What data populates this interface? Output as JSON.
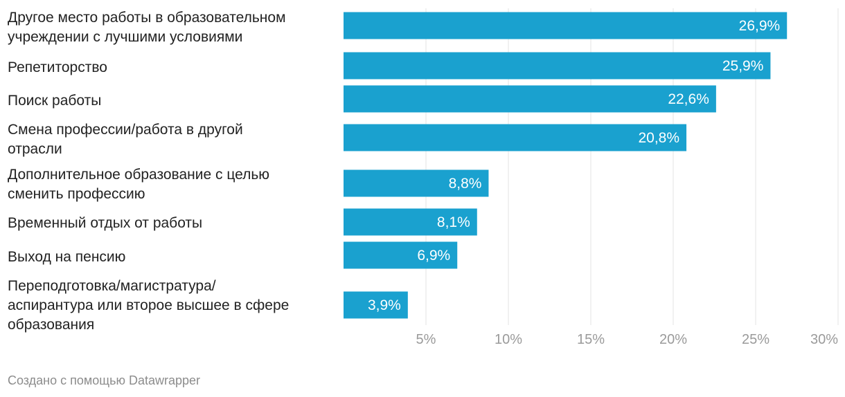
{
  "chart_data": {
    "type": "bar",
    "orientation": "horizontal",
    "categories": [
      [
        "Другое место работы в образовательном",
        "учреждении с лучшими условиями"
      ],
      [
        "Репетиторство"
      ],
      [
        "Поиск работы"
      ],
      [
        "Смена профессии/работа в другой",
        "отрасли"
      ],
      [
        "Дополнительное образование с целью",
        "сменить профессию"
      ],
      [
        "Временный отдых от работы"
      ],
      [
        "Выход на пенсию"
      ],
      [
        "Переподготовка/магистратура/",
        "аспирантура или второе высшее в сфере",
        "образования"
      ]
    ],
    "values": [
      26.9,
      25.9,
      22.6,
      20.8,
      8.8,
      8.1,
      6.9,
      3.9
    ],
    "value_labels": [
      "26,9%",
      "25,9%",
      "22,6%",
      "20,8%",
      "8,8%",
      "8,1%",
      "6,9%",
      "3,9%"
    ],
    "xlim": [
      0,
      30
    ],
    "x_ticks": [
      5,
      10,
      15,
      20,
      25,
      30
    ],
    "x_tick_labels": [
      "5%",
      "10%",
      "15%",
      "20%",
      "25%",
      "30%"
    ],
    "grid": true,
    "bar_color": "#1aa1cf",
    "grid_color": "#e3e3e3"
  },
  "credit": "Создано с помощью Datawrapper"
}
